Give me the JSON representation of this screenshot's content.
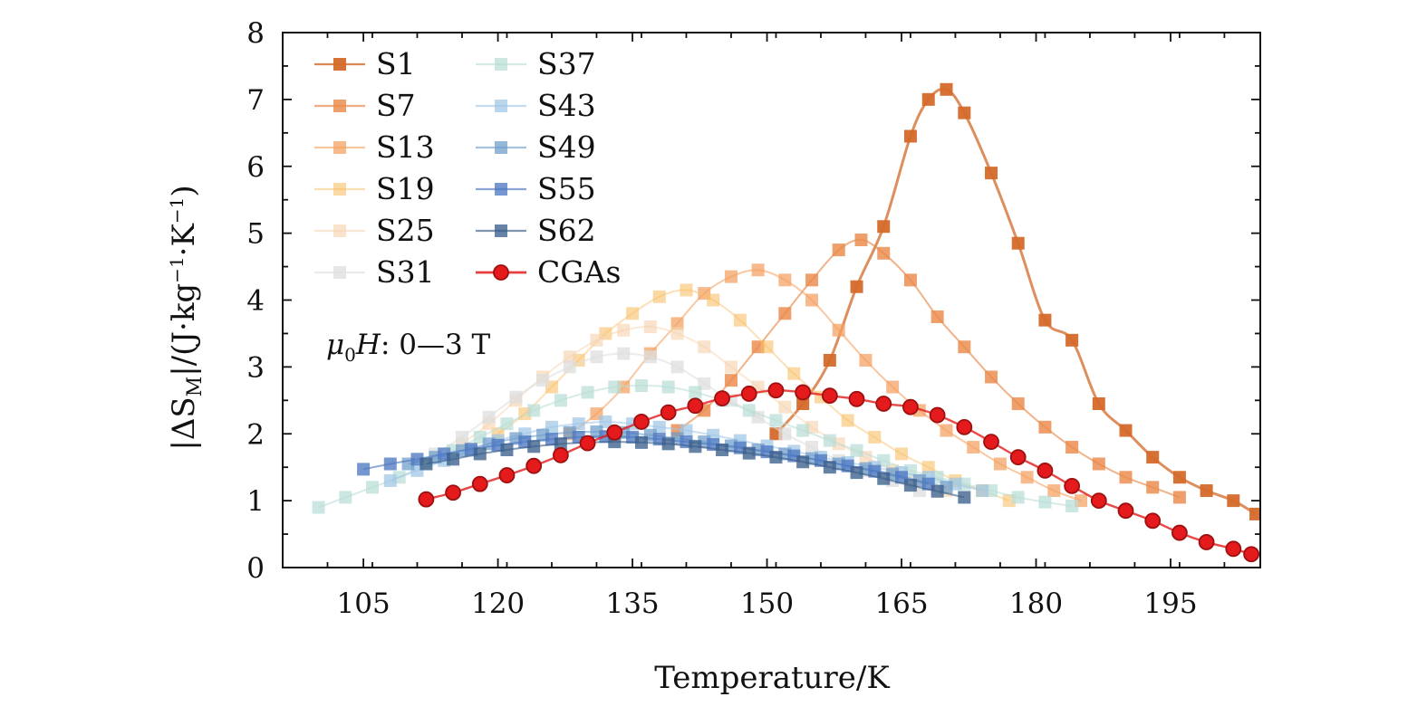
{
  "chart_data": {
    "type": "line",
    "xlabel": "Temperature/K",
    "ylabel": "|ΔS_M|/(J·kg^-1·K^-1)",
    "xlim": [
      96,
      205
    ],
    "ylim": [
      0,
      8
    ],
    "xticks": [
      105,
      120,
      135,
      150,
      165,
      180,
      195
    ],
    "yticks": [
      0,
      1,
      2,
      3,
      4,
      5,
      6,
      7,
      8
    ],
    "grid": false,
    "legend": {
      "location": "top-left",
      "columns": 2
    },
    "annotation": "μ0H: 0—3 T",
    "series": [
      {
        "name": "S1",
        "color": "#d46a2a",
        "marker": "square",
        "alpha": 0.95,
        "x": [
          151.0,
          154.0,
          157.0,
          160.0,
          163.0,
          166.0,
          168.0,
          170.0,
          172.0,
          175.0,
          178.0,
          181.0,
          184.0,
          187.0,
          190.0,
          193.0,
          196.0,
          199.0,
          202.0,
          204.5
        ],
        "y": [
          2.0,
          2.45,
          3.1,
          4.2,
          5.1,
          6.45,
          7.0,
          7.15,
          6.8,
          5.9,
          4.85,
          3.7,
          3.4,
          2.45,
          2.05,
          1.65,
          1.35,
          1.15,
          1.0,
          0.8
        ]
      },
      {
        "name": "S7",
        "color": "#ea8a4a",
        "marker": "square",
        "alpha": 0.82,
        "x": [
          140.0,
          143.0,
          146.0,
          149.0,
          152.0,
          155.0,
          158.0,
          160.5,
          163.0,
          166.0,
          169.0,
          172.0,
          175.0,
          178.0,
          181.0,
          184.0,
          187.0,
          190.0,
          193.0,
          196.0
        ],
        "y": [
          2.05,
          2.35,
          2.8,
          3.3,
          3.8,
          4.3,
          4.75,
          4.9,
          4.7,
          4.3,
          3.75,
          3.3,
          2.85,
          2.45,
          2.1,
          1.8,
          1.55,
          1.35,
          1.2,
          1.05
        ]
      },
      {
        "name": "S13",
        "color": "#f4a05f",
        "marker": "square",
        "alpha": 0.72,
        "x": [
          128.0,
          131.0,
          134.0,
          137.0,
          140.0,
          143.0,
          146.0,
          149.0,
          152.0,
          155.0,
          158.0,
          161.0,
          164.0,
          167.0,
          170.0,
          173.0,
          176.0,
          179.0,
          182.0,
          185.0
        ],
        "y": [
          2.0,
          2.3,
          2.7,
          3.2,
          3.65,
          4.1,
          4.35,
          4.45,
          4.3,
          4.0,
          3.55,
          3.1,
          2.7,
          2.35,
          2.05,
          1.8,
          1.55,
          1.35,
          1.15,
          1.0
        ]
      },
      {
        "name": "S19",
        "color": "#f8bf68",
        "marker": "square",
        "alpha": 0.6,
        "x": [
          120.0,
          123.0,
          126.0,
          129.0,
          132.0,
          135.0,
          138.0,
          141.0,
          144.0,
          147.0,
          150.0,
          153.0,
          156.0,
          159.0,
          162.0,
          165.0,
          168.0,
          171.0,
          174.0,
          177.0
        ],
        "y": [
          2.0,
          2.3,
          2.7,
          3.1,
          3.5,
          3.8,
          4.05,
          4.15,
          4.0,
          3.7,
          3.3,
          2.9,
          2.55,
          2.2,
          1.95,
          1.7,
          1.5,
          1.3,
          1.15,
          1.0
        ]
      },
      {
        "name": "S25",
        "color": "#f6d4b0",
        "marker": "square",
        "alpha": 0.65,
        "x": [
          116.0,
          119.0,
          122.0,
          125.0,
          128.0,
          131.0,
          134.0,
          137.0,
          140.0,
          143.0,
          146.0,
          149.0,
          152.0,
          155.0,
          158.0,
          161.0,
          164.0,
          167.0,
          170.0
        ],
        "y": [
          1.85,
          2.15,
          2.5,
          2.85,
          3.15,
          3.4,
          3.55,
          3.6,
          3.5,
          3.3,
          3.0,
          2.7,
          2.4,
          2.1,
          1.85,
          1.65,
          1.45,
          1.3,
          1.15
        ]
      },
      {
        "name": "S31",
        "color": "#dedede",
        "marker": "square",
        "alpha": 0.75,
        "x": [
          113.0,
          116.0,
          119.0,
          122.0,
          125.0,
          128.0,
          131.0,
          134.0,
          137.0,
          140.0,
          143.0,
          146.0,
          149.0,
          152.0,
          155.0,
          158.0,
          161.0,
          164.0,
          167.0
        ],
        "y": [
          1.7,
          1.95,
          2.25,
          2.55,
          2.8,
          3.0,
          3.15,
          3.2,
          3.15,
          3.0,
          2.75,
          2.5,
          2.25,
          2.0,
          1.8,
          1.6,
          1.45,
          1.3,
          1.15
        ]
      },
      {
        "name": "S37",
        "color": "#b9ddd6",
        "marker": "square",
        "alpha": 0.72,
        "x": [
          100.0,
          103.0,
          106.0,
          109.0,
          112.0,
          115.0,
          118.0,
          121.0,
          124.0,
          127.0,
          130.0,
          133.0,
          136.0,
          139.0,
          142.0,
          145.0,
          148.0,
          151.0,
          154.0,
          157.0,
          160.0,
          163.0,
          166.0,
          169.0,
          172.0,
          175.0,
          178.0,
          181.0,
          184.0
        ],
        "y": [
          0.9,
          1.05,
          1.2,
          1.35,
          1.55,
          1.75,
          1.95,
          2.15,
          2.35,
          2.5,
          2.62,
          2.7,
          2.72,
          2.7,
          2.62,
          2.5,
          2.35,
          2.2,
          2.05,
          1.9,
          1.75,
          1.6,
          1.45,
          1.35,
          1.25,
          1.15,
          1.05,
          0.98,
          0.92
        ]
      },
      {
        "name": "S43",
        "color": "#9fc6e6",
        "marker": "square",
        "alpha": 0.72,
        "x": [
          108.0,
          111.0,
          114.0,
          117.0,
          120.0,
          123.0,
          126.0,
          129.0,
          132.0,
          135.0,
          138.0,
          141.0,
          144.0,
          147.0,
          150.0,
          153.0,
          156.0,
          159.0,
          162.0,
          165.0,
          168.0,
          171.0,
          174.0
        ],
        "y": [
          1.3,
          1.45,
          1.6,
          1.75,
          1.9,
          2.0,
          2.1,
          2.15,
          2.18,
          2.15,
          2.1,
          2.05,
          1.98,
          1.9,
          1.82,
          1.74,
          1.65,
          1.57,
          1.5,
          1.42,
          1.35,
          1.25,
          1.15
        ]
      },
      {
        "name": "S49",
        "color": "#6e9cc9",
        "marker": "square",
        "alpha": 0.72,
        "x": [
          110.0,
          113.0,
          116.0,
          119.0,
          122.0,
          125.0,
          128.0,
          131.0,
          134.0,
          137.0,
          140.0,
          143.0,
          146.0,
          149.0,
          152.0,
          155.0,
          158.0,
          161.0,
          164.0,
          167.0,
          170.0
        ],
        "y": [
          1.55,
          1.65,
          1.75,
          1.85,
          1.93,
          1.98,
          2.02,
          2.03,
          2.02,
          1.98,
          1.93,
          1.88,
          1.82,
          1.76,
          1.7,
          1.63,
          1.55,
          1.48,
          1.4,
          1.3,
          1.2
        ]
      },
      {
        "name": "S55",
        "color": "#4e78c2",
        "marker": "square",
        "alpha": 0.78,
        "x": [
          105.0,
          108.0,
          111.0,
          114.0,
          117.0,
          120.0,
          123.0,
          126.0,
          129.0,
          132.0,
          135.0,
          138.0,
          141.0,
          144.0,
          147.0,
          150.0,
          153.0,
          156.0,
          159.0,
          162.0,
          165.0,
          168.0
        ],
        "y": [
          1.47,
          1.55,
          1.62,
          1.7,
          1.77,
          1.83,
          1.88,
          1.92,
          1.95,
          1.96,
          1.95,
          1.92,
          1.88,
          1.84,
          1.79,
          1.73,
          1.67,
          1.6,
          1.52,
          1.44,
          1.35,
          1.25
        ]
      },
      {
        "name": "S62",
        "color": "#3b5f8a",
        "marker": "square",
        "alpha": 0.78,
        "x": [
          112.0,
          115.0,
          118.0,
          121.0,
          124.0,
          127.0,
          130.0,
          133.0,
          136.0,
          139.0,
          142.0,
          145.0,
          148.0,
          151.0,
          154.0,
          157.0,
          160.0,
          163.0,
          166.0,
          169.0,
          172.0
        ],
        "y": [
          1.55,
          1.62,
          1.7,
          1.76,
          1.81,
          1.85,
          1.87,
          1.88,
          1.87,
          1.85,
          1.81,
          1.76,
          1.71,
          1.65,
          1.58,
          1.5,
          1.42,
          1.33,
          1.23,
          1.14,
          1.05
        ]
      },
      {
        "name": "CGAs",
        "color": "#e41a1c",
        "marker": "circle",
        "alpha": 1.0,
        "x": [
          112.0,
          115.0,
          118.0,
          121.0,
          124.0,
          127.0,
          130.0,
          133.0,
          136.0,
          139.0,
          142.0,
          145.0,
          148.0,
          151.0,
          154.0,
          157.0,
          160.0,
          163.0,
          166.0,
          169.0,
          172.0,
          175.0,
          178.0,
          181.0,
          184.0,
          187.0,
          190.0,
          193.0,
          196.0,
          199.0,
          202.0,
          204.0
        ],
        "y": [
          1.02,
          1.12,
          1.25,
          1.38,
          1.52,
          1.68,
          1.86,
          2.02,
          2.18,
          2.32,
          2.42,
          2.53,
          2.6,
          2.65,
          2.62,
          2.57,
          2.52,
          2.45,
          2.4,
          2.28,
          2.1,
          1.88,
          1.65,
          1.45,
          1.22,
          1.0,
          0.85,
          0.7,
          0.52,
          0.38,
          0.28,
          0.2
        ]
      }
    ]
  }
}
